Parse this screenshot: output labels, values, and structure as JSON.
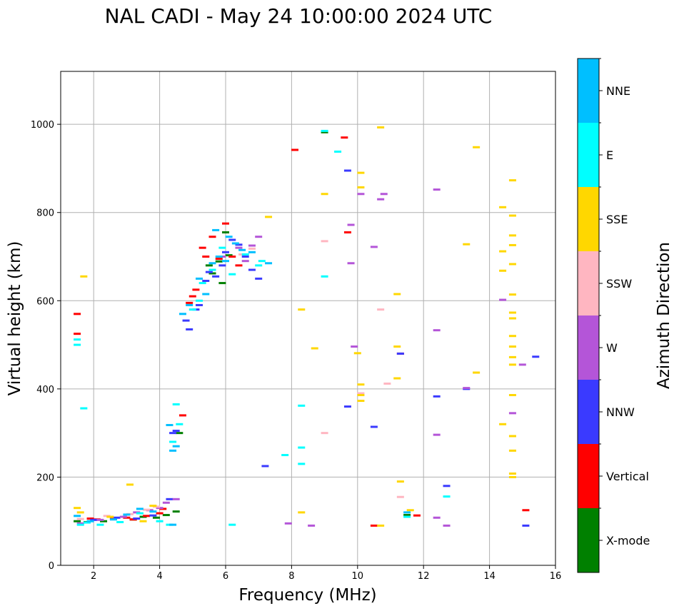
{
  "chart_data": {
    "type": "scatter",
    "title": "NAL CADI - May 24 10:00:00 2024 UTC",
    "xlabel": "Frequency (MHz)",
    "ylabel": "Virtual height (km)",
    "xlim": [
      1,
      16
    ],
    "ylim": [
      0,
      1120
    ],
    "xticks": [
      2,
      4,
      6,
      8,
      10,
      12,
      14,
      16
    ],
    "yticks": [
      0,
      200,
      400,
      600,
      800,
      1000
    ],
    "grid": true,
    "colorbar": {
      "label": "Azimuth Direction",
      "categories": [
        "X-mode",
        "Vertical",
        "NNW",
        "W",
        "SSW",
        "SSE",
        "E",
        "NNE"
      ],
      "colors": [
        "#008000",
        "#ff0000",
        "#3a3aff",
        "#b455d8",
        "#ffb6c1",
        "#ffd700",
        "#00ffff",
        "#00bfff"
      ]
    },
    "series": [
      {
        "name": "X-mode",
        "points": [
          [
            1.5,
            100
          ],
          [
            1.8,
            98
          ],
          [
            2.3,
            100
          ],
          [
            3.2,
            104
          ],
          [
            3.5,
            110
          ],
          [
            3.9,
            108
          ],
          [
            4.2,
            114
          ],
          [
            4.5,
            122
          ],
          [
            5.6,
            662
          ],
          [
            5.8,
            689
          ],
          [
            5.9,
            640
          ],
          [
            6.1,
            703
          ],
          [
            6.0,
            755
          ],
          [
            5.5,
            680
          ],
          [
            9.0,
            982
          ],
          [
            4.6,
            300
          ],
          [
            11.5,
            114
          ]
        ]
      },
      {
        "name": "Vertical",
        "points": [
          [
            1.5,
            570
          ],
          [
            1.5,
            525
          ],
          [
            1.9,
            106
          ],
          [
            2.1,
            104
          ],
          [
            2.6,
            106
          ],
          [
            3.0,
            108
          ],
          [
            3.2,
            104
          ],
          [
            3.6,
            112
          ],
          [
            4.0,
            118
          ],
          [
            4.1,
            128
          ],
          [
            4.7,
            340
          ],
          [
            4.9,
            595
          ],
          [
            5.0,
            610
          ],
          [
            5.1,
            625
          ],
          [
            5.3,
            720
          ],
          [
            5.4,
            700
          ],
          [
            5.6,
            745
          ],
          [
            5.8,
            695
          ],
          [
            6.0,
            775
          ],
          [
            6.2,
            700
          ],
          [
            6.4,
            680
          ],
          [
            8.1,
            942
          ],
          [
            9.6,
            970
          ],
          [
            9.7,
            755
          ],
          [
            10.5,
            90
          ],
          [
            11.3,
            480
          ],
          [
            11.8,
            113
          ],
          [
            15.1,
            125
          ]
        ]
      },
      {
        "name": "NNW",
        "points": [
          [
            2.0,
            103
          ],
          [
            2.7,
            108
          ],
          [
            3.3,
            106
          ],
          [
            3.8,
            113
          ],
          [
            4.3,
            150
          ],
          [
            4.4,
            300
          ],
          [
            4.5,
            305
          ],
          [
            4.8,
            555
          ],
          [
            4.9,
            535
          ],
          [
            5.1,
            580
          ],
          [
            5.2,
            590
          ],
          [
            5.4,
            645
          ],
          [
            5.5,
            665
          ],
          [
            5.7,
            655
          ],
          [
            5.9,
            680
          ],
          [
            6.0,
            710
          ],
          [
            6.2,
            738
          ],
          [
            6.4,
            727
          ],
          [
            6.6,
            700
          ],
          [
            6.8,
            670
          ],
          [
            7.0,
            650
          ],
          [
            7.2,
            225
          ],
          [
            9.7,
            895
          ],
          [
            9.7,
            360
          ],
          [
            10.5,
            314
          ],
          [
            11.3,
            480
          ],
          [
            12.4,
            383
          ],
          [
            12.7,
            180
          ],
          [
            13.3,
            400
          ],
          [
            15.1,
            90
          ],
          [
            15.4,
            473
          ]
        ]
      },
      {
        "name": "W",
        "points": [
          [
            1.6,
            95
          ],
          [
            2.2,
            103
          ],
          [
            2.9,
            110
          ],
          [
            3.3,
            120
          ],
          [
            3.7,
            125
          ],
          [
            4.0,
            130
          ],
          [
            4.2,
            142
          ],
          [
            4.5,
            150
          ],
          [
            5.9,
            700
          ],
          [
            6.4,
            720
          ],
          [
            6.6,
            690
          ],
          [
            6.8,
            725
          ],
          [
            7.0,
            745
          ],
          [
            9.8,
            772
          ],
          [
            9.8,
            685
          ],
          [
            9.9,
            496
          ],
          [
            10.1,
            842
          ],
          [
            10.5,
            722
          ],
          [
            10.7,
            830
          ],
          [
            10.8,
            842
          ],
          [
            12.4,
            852
          ],
          [
            12.4,
            533
          ],
          [
            12.4,
            296
          ],
          [
            12.4,
            108
          ],
          [
            12.7,
            90
          ],
          [
            13.3,
            402
          ],
          [
            14.4,
            602
          ],
          [
            14.7,
            345
          ],
          [
            15.0,
            455
          ],
          [
            8.6,
            90
          ],
          [
            7.9,
            95
          ]
        ]
      },
      {
        "name": "SSW",
        "points": [
          [
            1.6,
            105
          ],
          [
            2.4,
            112
          ],
          [
            3.1,
            116
          ],
          [
            3.6,
            126
          ],
          [
            3.9,
            133
          ],
          [
            6.5,
            705
          ],
          [
            6.8,
            718
          ],
          [
            9.0,
            735
          ],
          [
            9.0,
            300
          ],
          [
            10.1,
            390
          ],
          [
            10.7,
            580
          ],
          [
            10.9,
            412
          ],
          [
            11.3,
            155
          ]
        ]
      },
      {
        "name": "SSE",
        "points": [
          [
            1.5,
            130
          ],
          [
            1.6,
            120
          ],
          [
            1.7,
            655
          ],
          [
            2.5,
            110
          ],
          [
            3.1,
            183
          ],
          [
            3.5,
            100
          ],
          [
            3.8,
            135
          ],
          [
            7.3,
            790
          ],
          [
            8.3,
            580
          ],
          [
            8.3,
            120
          ],
          [
            8.7,
            492
          ],
          [
            9.0,
            842
          ],
          [
            10.0,
            481
          ],
          [
            10.1,
            410
          ],
          [
            10.1,
            373
          ],
          [
            10.1,
            386
          ],
          [
            10.1,
            890
          ],
          [
            10.1,
            857
          ],
          [
            10.7,
            90
          ],
          [
            10.7,
            993
          ],
          [
            11.2,
            615
          ],
          [
            11.2,
            496
          ],
          [
            11.2,
            424
          ],
          [
            11.3,
            190
          ],
          [
            11.6,
            125
          ],
          [
            13.3,
            728
          ],
          [
            13.6,
            948
          ],
          [
            13.6,
            437
          ],
          [
            14.4,
            812
          ],
          [
            14.4,
            712
          ],
          [
            14.4,
            668
          ],
          [
            14.4,
            320
          ],
          [
            14.7,
            873
          ],
          [
            14.7,
            793
          ],
          [
            14.7,
            748
          ],
          [
            14.7,
            726
          ],
          [
            14.7,
            683
          ],
          [
            14.7,
            614
          ],
          [
            14.7,
            573
          ],
          [
            14.7,
            560
          ],
          [
            14.7,
            520
          ],
          [
            14.7,
            496
          ],
          [
            14.7,
            472
          ],
          [
            14.7,
            455
          ],
          [
            14.7,
            386
          ],
          [
            14.7,
            293
          ],
          [
            14.7,
            260
          ],
          [
            14.7,
            208
          ],
          [
            14.7,
            200
          ]
        ]
      },
      {
        "name": "E",
        "points": [
          [
            1.5,
            512
          ],
          [
            1.5,
            500
          ],
          [
            1.6,
            92
          ],
          [
            1.7,
            356
          ],
          [
            1.8,
            97
          ],
          [
            2.2,
            92
          ],
          [
            2.8,
            98
          ],
          [
            3.4,
            118
          ],
          [
            4.0,
            100
          ],
          [
            4.3,
            92
          ],
          [
            4.4,
            280
          ],
          [
            4.6,
            320
          ],
          [
            4.5,
            365
          ],
          [
            5.0,
            580
          ],
          [
            5.2,
            600
          ],
          [
            5.3,
            640
          ],
          [
            5.6,
            670
          ],
          [
            5.9,
            720
          ],
          [
            6.2,
            660
          ],
          [
            6.6,
            705
          ],
          [
            7.0,
            680
          ],
          [
            7.1,
            690
          ],
          [
            7.8,
            250
          ],
          [
            8.3,
            362
          ],
          [
            8.3,
            267
          ],
          [
            8.3,
            230
          ],
          [
            6.2,
            92
          ],
          [
            9.0,
            655
          ],
          [
            9.0,
            985
          ],
          [
            9.4,
            938
          ],
          [
            11.5,
            110
          ],
          [
            12.7,
            156
          ]
        ]
      },
      {
        "name": "NNE",
        "points": [
          [
            1.5,
            112
          ],
          [
            1.9,
            100
          ],
          [
            2.6,
            104
          ],
          [
            3.0,
            115
          ],
          [
            3.4,
            128
          ],
          [
            3.8,
            122
          ],
          [
            4.3,
            318
          ],
          [
            4.4,
            260
          ],
          [
            4.5,
            270
          ],
          [
            4.7,
            570
          ],
          [
            4.9,
            590
          ],
          [
            5.2,
            650
          ],
          [
            5.4,
            615
          ],
          [
            5.6,
            685
          ],
          [
            5.7,
            760
          ],
          [
            5.8,
            700
          ],
          [
            6.0,
            690
          ],
          [
            6.1,
            745
          ],
          [
            6.3,
            730
          ],
          [
            6.5,
            715
          ],
          [
            6.8,
            710
          ],
          [
            7.3,
            685
          ],
          [
            4.4,
            92
          ],
          [
            11.5,
            120
          ]
        ]
      }
    ]
  }
}
